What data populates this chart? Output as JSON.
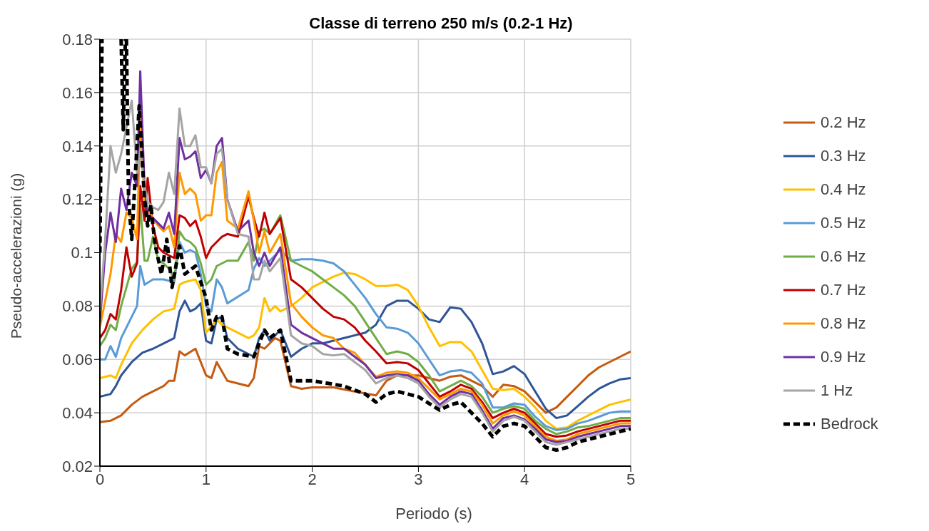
{
  "chart_data": {
    "type": "line",
    "title": "Classe di terreno 250 m/s (0.2-1 Hz)",
    "xlabel": "Periodo (s)",
    "ylabel": "Pseudo-accelerazioni (g)",
    "xlim": [
      0,
      5
    ],
    "xticks": [
      0,
      1,
      2,
      3,
      4,
      5
    ],
    "ylim": [
      0.02,
      0.18
    ],
    "yticks": [
      0.02,
      0.04,
      0.06,
      0.08,
      0.1,
      0.12,
      0.14,
      0.16,
      0.18
    ],
    "grid": true,
    "legend": "right",
    "marker": "none",
    "x": [
      0,
      0.05,
      0.1,
      0.15,
      0.2,
      0.25,
      0.3,
      0.35,
      0.38,
      0.42,
      0.45,
      0.5,
      0.55,
      0.6,
      0.65,
      0.7,
      0.75,
      0.8,
      0.85,
      0.9,
      0.95,
      1.0,
      1.05,
      1.1,
      1.15,
      1.2,
      1.3,
      1.4,
      1.45,
      1.5,
      1.55,
      1.6,
      1.7,
      1.8,
      1.9,
      2.0,
      2.1,
      2.2,
      2.3,
      2.4,
      2.5,
      2.6,
      2.7,
      2.8,
      2.9,
      3.0,
      3.1,
      3.2,
      3.3,
      3.4,
      3.5,
      3.6,
      3.7,
      3.8,
      3.9,
      4.0,
      4.1,
      4.2,
      4.3,
      4.4,
      4.5,
      4.6,
      4.7,
      4.8,
      4.9,
      5.0
    ],
    "series": [
      {
        "name": "0.2 Hz",
        "color": "#c55a11",
        "x": [
          0,
          0.1,
          0.2,
          0.3,
          0.4,
          0.5,
          0.6,
          0.65,
          0.7,
          0.75,
          0.8,
          0.9,
          1.0,
          1.05,
          1.1,
          1.2,
          1.4,
          1.45,
          1.5,
          1.55,
          1.65,
          1.7,
          1.8,
          1.9,
          2.0,
          2.2,
          2.4,
          2.6,
          2.7,
          2.8,
          3.0,
          3.2,
          3.3,
          3.4,
          3.5,
          3.6,
          3.7,
          3.8,
          3.9,
          4.0,
          4.1,
          4.2,
          4.3,
          4.4,
          4.5,
          4.6,
          4.7,
          4.8,
          4.9,
          5.0
        ],
        "values": [
          0.0365,
          0.037,
          0.039,
          0.043,
          0.046,
          0.048,
          0.05,
          0.052,
          0.052,
          0.063,
          0.0615,
          0.064,
          0.054,
          0.053,
          0.059,
          0.052,
          0.05,
          0.053,
          0.065,
          0.064,
          0.068,
          0.067,
          0.05,
          0.049,
          0.0495,
          0.0495,
          0.048,
          0.0465,
          0.052,
          0.054,
          0.054,
          0.052,
          0.0535,
          0.054,
          0.052,
          0.05,
          0.046,
          0.0505,
          0.05,
          0.048,
          0.044,
          0.04,
          0.042,
          0.046,
          0.05,
          0.054,
          0.057,
          0.059,
          0.061,
          0.063
        ]
      },
      {
        "name": "0.3 Hz",
        "color": "#2f5597",
        "x": [
          0,
          0.1,
          0.15,
          0.2,
          0.3,
          0.4,
          0.5,
          0.6,
          0.7,
          0.75,
          0.8,
          0.85,
          0.9,
          0.95,
          1.0,
          1.05,
          1.1,
          1.15,
          1.2,
          1.3,
          1.4,
          1.45,
          1.5,
          1.55,
          1.6,
          1.7,
          1.8,
          1.9,
          2.0,
          2.1,
          2.2,
          2.3,
          2.5,
          2.6,
          2.7,
          2.8,
          2.9,
          3.0,
          3.1,
          3.2,
          3.3,
          3.4,
          3.5,
          3.6,
          3.7,
          3.8,
          3.9,
          4.0,
          4.1,
          4.2,
          4.3,
          4.4,
          4.5,
          4.6,
          4.7,
          4.8,
          4.9,
          5.0
        ],
        "values": [
          0.046,
          0.047,
          0.05,
          0.054,
          0.059,
          0.0625,
          0.064,
          0.066,
          0.068,
          0.078,
          0.082,
          0.078,
          0.079,
          0.081,
          0.067,
          0.066,
          0.075,
          0.076,
          0.068,
          0.064,
          0.062,
          0.061,
          0.068,
          0.071,
          0.067,
          0.071,
          0.061,
          0.064,
          0.066,
          0.066,
          0.067,
          0.068,
          0.07,
          0.073,
          0.08,
          0.082,
          0.082,
          0.079,
          0.075,
          0.074,
          0.0795,
          0.079,
          0.074,
          0.066,
          0.0545,
          0.0555,
          0.0575,
          0.0545,
          0.048,
          0.0415,
          0.038,
          0.039,
          0.0425,
          0.046,
          0.049,
          0.051,
          0.0525,
          0.053
        ]
      },
      {
        "name": "0.4 Hz",
        "color": "#ffc000",
        "x": [
          0,
          0.1,
          0.15,
          0.2,
          0.3,
          0.4,
          0.5,
          0.6,
          0.7,
          0.75,
          0.8,
          0.9,
          0.95,
          1.0,
          1.1,
          1.15,
          1.4,
          1.45,
          1.5,
          1.55,
          1.6,
          1.65,
          1.7,
          1.8,
          1.9,
          2.0,
          2.1,
          2.2,
          2.3,
          2.4,
          2.5,
          2.6,
          2.7,
          2.8,
          2.9,
          3.0,
          3.1,
          3.2,
          3.3,
          3.4,
          3.5,
          3.6,
          3.7,
          3.8,
          3.9,
          4.0,
          4.1,
          4.2,
          4.3,
          4.4,
          4.5,
          4.6,
          4.7,
          4.8,
          4.9,
          5.0
        ],
        "values": [
          0.053,
          0.054,
          0.053,
          0.058,
          0.066,
          0.071,
          0.075,
          0.078,
          0.079,
          0.088,
          0.089,
          0.09,
          0.086,
          0.07,
          0.075,
          0.073,
          0.068,
          0.069,
          0.072,
          0.083,
          0.078,
          0.08,
          0.078,
          0.08,
          0.083,
          0.087,
          0.089,
          0.091,
          0.0925,
          0.092,
          0.09,
          0.0875,
          0.0875,
          0.088,
          0.086,
          0.08,
          0.072,
          0.065,
          0.0665,
          0.0665,
          0.063,
          0.056,
          0.049,
          0.0485,
          0.049,
          0.046,
          0.042,
          0.037,
          0.034,
          0.0345,
          0.037,
          0.039,
          0.041,
          0.043,
          0.044,
          0.045
        ]
      },
      {
        "name": "0.5 Hz",
        "color": "#5b9bd5",
        "x": [
          0,
          0.05,
          0.1,
          0.15,
          0.2,
          0.3,
          0.35,
          0.38,
          0.42,
          0.5,
          0.6,
          0.7,
          0.75,
          0.8,
          0.85,
          0.9,
          0.95,
          1.0,
          1.05,
          1.1,
          1.15,
          1.2,
          1.4,
          1.45,
          1.5,
          1.55,
          1.6,
          1.7,
          1.8,
          1.9,
          2.0,
          2.1,
          2.2,
          2.3,
          2.4,
          2.5,
          2.6,
          2.7,
          2.8,
          2.9,
          3.0,
          3.1,
          3.2,
          3.3,
          3.4,
          3.5,
          3.6,
          3.7,
          3.8,
          3.9,
          4.0,
          4.1,
          4.2,
          4.3,
          4.4,
          4.5,
          4.6,
          4.7,
          4.8,
          4.9,
          5.0
        ],
        "values": [
          0.06,
          0.06,
          0.065,
          0.061,
          0.068,
          0.076,
          0.08,
          0.095,
          0.088,
          0.09,
          0.09,
          0.089,
          0.104,
          0.1,
          0.101,
          0.1,
          0.092,
          0.08,
          0.078,
          0.09,
          0.087,
          0.081,
          0.086,
          0.094,
          0.098,
          0.095,
          0.097,
          0.101,
          0.097,
          0.0975,
          0.0975,
          0.097,
          0.096,
          0.093,
          0.088,
          0.083,
          0.077,
          0.072,
          0.0715,
          0.07,
          0.066,
          0.06,
          0.054,
          0.0555,
          0.056,
          0.055,
          0.051,
          0.042,
          0.042,
          0.0435,
          0.043,
          0.0385,
          0.035,
          0.0335,
          0.034,
          0.036,
          0.037,
          0.0385,
          0.04,
          0.0405,
          0.0405
        ]
      },
      {
        "name": "0.6 Hz",
        "color": "#70ad47",
        "values": [
          0.065,
          0.068,
          0.073,
          0.071,
          0.08,
          0.087,
          0.094,
          0.0965,
          0.118,
          0.097,
          0.097,
          0.106,
          0.097,
          0.096,
          0.094,
          0.09,
          0.108,
          0.105,
          0.104,
          0.102,
          0.096,
          0.088,
          0.09,
          0.095,
          0.096,
          0.097,
          0.097,
          0.104,
          0.097,
          0.108,
          0.109,
          0.107,
          0.114,
          0.097,
          0.095,
          0.093,
          0.09,
          0.087,
          0.084,
          0.08,
          0.074,
          0.068,
          0.062,
          0.063,
          0.062,
          0.059,
          0.054,
          0.048,
          0.05,
          0.052,
          0.05,
          0.046,
          0.04,
          0.0415,
          0.0425,
          0.0415,
          0.037,
          0.034,
          0.032,
          0.033,
          0.0345,
          0.035,
          0.036,
          0.037,
          0.038,
          0.038
        ]
      },
      {
        "name": "0.7 Hz",
        "color": "#c00000",
        "values": [
          0.068,
          0.071,
          0.077,
          0.075,
          0.086,
          0.102,
          0.091,
          0.096,
          0.125,
          0.112,
          0.128,
          0.11,
          0.102,
          0.1,
          0.099,
          0.098,
          0.114,
          0.113,
          0.11,
          0.112,
          0.106,
          0.098,
          0.102,
          0.104,
          0.106,
          0.107,
          0.106,
          0.121,
          0.113,
          0.106,
          0.115,
          0.107,
          0.113,
          0.09,
          0.087,
          0.083,
          0.079,
          0.076,
          0.075,
          0.072,
          0.067,
          0.063,
          0.0585,
          0.059,
          0.0585,
          0.056,
          0.051,
          0.046,
          0.048,
          0.0505,
          0.049,
          0.044,
          0.038,
          0.04,
          0.0415,
          0.04,
          0.036,
          0.032,
          0.031,
          0.0315,
          0.033,
          0.034,
          0.035,
          0.036,
          0.037,
          0.037
        ]
      },
      {
        "name": "0.8 Hz",
        "color": "#ff9900",
        "values": [
          0.072,
          0.082,
          0.092,
          0.107,
          0.104,
          0.115,
          0.113,
          0.105,
          0.15,
          0.12,
          0.116,
          0.113,
          0.11,
          0.108,
          0.11,
          0.102,
          0.13,
          0.122,
          0.124,
          0.122,
          0.112,
          0.114,
          0.114,
          0.13,
          0.134,
          0.112,
          0.109,
          0.123,
          0.112,
          0.1,
          0.108,
          0.1,
          0.107,
          0.081,
          0.076,
          0.072,
          0.069,
          0.068,
          0.064,
          0.0625,
          0.058,
          0.0535,
          0.055,
          0.0555,
          0.055,
          0.053,
          0.049,
          0.045,
          0.047,
          0.049,
          0.048,
          0.043,
          0.036,
          0.039,
          0.0405,
          0.039,
          0.035,
          0.031,
          0.0295,
          0.03,
          0.032,
          0.033,
          0.034,
          0.035,
          0.036,
          0.036
        ]
      },
      {
        "name": "0.9 Hz",
        "color": "#7030a0",
        "values": [
          0.074,
          0.1,
          0.115,
          0.104,
          0.124,
          0.116,
          0.13,
          0.125,
          0.168,
          0.125,
          0.114,
          0.113,
          0.111,
          0.109,
          0.115,
          0.107,
          0.143,
          0.135,
          0.136,
          0.138,
          0.128,
          0.131,
          0.126,
          0.14,
          0.143,
          0.12,
          0.108,
          0.112,
          0.1,
          0.095,
          0.1,
          0.095,
          0.102,
          0.073,
          0.07,
          0.068,
          0.066,
          0.064,
          0.064,
          0.061,
          0.058,
          0.053,
          0.054,
          0.0545,
          0.054,
          0.052,
          0.047,
          0.043,
          0.046,
          0.048,
          0.047,
          0.041,
          0.034,
          0.038,
          0.039,
          0.0375,
          0.034,
          0.03,
          0.029,
          0.0295,
          0.031,
          0.032,
          0.033,
          0.034,
          0.035,
          0.035
        ]
      },
      {
        "name": "1 Hz",
        "color": "#a5a5a5",
        "values": [
          0.078,
          0.105,
          0.14,
          0.13,
          0.137,
          0.147,
          0.157,
          0.13,
          0.138,
          0.125,
          0.119,
          0.117,
          0.116,
          0.119,
          0.13,
          0.122,
          0.154,
          0.14,
          0.14,
          0.144,
          0.132,
          0.132,
          0.126,
          0.137,
          0.139,
          0.12,
          0.107,
          0.106,
          0.09,
          0.09,
          0.097,
          0.093,
          0.098,
          0.069,
          0.066,
          0.065,
          0.062,
          0.0615,
          0.062,
          0.059,
          0.056,
          0.051,
          0.053,
          0.054,
          0.053,
          0.051,
          0.046,
          0.042,
          0.045,
          0.047,
          0.046,
          0.04,
          0.033,
          0.037,
          0.0385,
          0.037,
          0.033,
          0.029,
          0.028,
          0.029,
          0.03,
          0.031,
          0.032,
          0.033,
          0.034,
          0.034
        ]
      },
      {
        "name": "Bedrock",
        "color": "#000000",
        "line_style": "dashed",
        "x": [
          0,
          0.02,
          0.03,
          0.2,
          0.22,
          0.24,
          0.245,
          0.25,
          0.27,
          0.3,
          0.37,
          0.42,
          0.45,
          0.48,
          0.5,
          0.52,
          0.58,
          0.63,
          0.68,
          0.75,
          0.8,
          0.9,
          1.0,
          1.05,
          1.1,
          1.15,
          1.2,
          1.3,
          1.45,
          1.55,
          1.6,
          1.7,
          1.8,
          2.0,
          2.3,
          2.5,
          2.6,
          2.7,
          2.8,
          3.0,
          3.2,
          3.3,
          3.4,
          3.5,
          3.6,
          3.7,
          3.8,
          3.9,
          4.0,
          4.1,
          4.2,
          4.3,
          4.4,
          4.5,
          4.6,
          4.7,
          4.8,
          4.9,
          5.0
        ],
        "values": [
          0.1,
          0.18,
          null,
          0.18,
          0.146,
          0.18,
          null,
          0.18,
          0.12,
          0.105,
          0.155,
          0.12,
          0.11,
          0.118,
          0.11,
          0.103,
          0.092,
          0.105,
          0.087,
          0.1025,
          0.092,
          0.095,
          0.083,
          0.071,
          0.076,
          0.076,
          0.064,
          0.062,
          0.061,
          0.071,
          0.068,
          0.071,
          0.052,
          0.052,
          0.05,
          0.047,
          0.044,
          0.047,
          0.048,
          0.046,
          0.041,
          0.043,
          0.044,
          0.04,
          0.036,
          0.031,
          0.035,
          0.036,
          0.035,
          0.031,
          0.027,
          0.026,
          0.027,
          0.029,
          0.03,
          0.031,
          0.032,
          0.033,
          0.034
        ]
      }
    ]
  }
}
